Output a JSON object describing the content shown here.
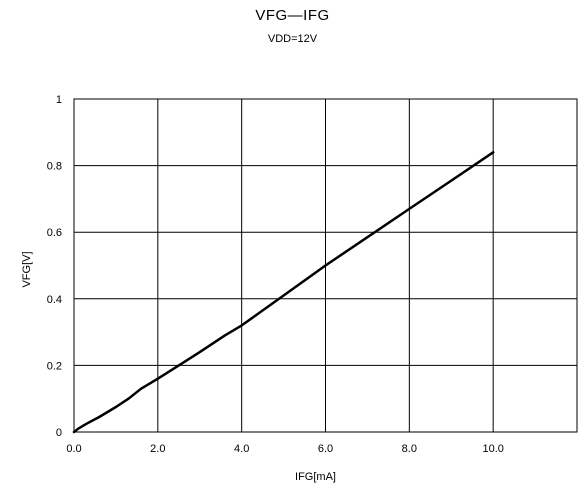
{
  "chart_data": {
    "type": "line",
    "title": "VFG—IFG",
    "subtitle": "VDD=12V",
    "xlabel": "IFG[mA]",
    "ylabel": "VFG[V]",
    "xlim": [
      0,
      12
    ],
    "ylim": [
      0,
      1
    ],
    "x_ticks": [
      0,
      2,
      4,
      6,
      8,
      10
    ],
    "x_tick_labels": [
      "0.0",
      "2.0",
      "4.0",
      "6.0",
      "8.0",
      "10.0"
    ],
    "y_ticks": [
      0,
      0.2,
      0.4,
      0.6,
      0.8,
      1
    ],
    "y_tick_labels": [
      "0",
      "0.2",
      "0.4",
      "0.6",
      "0.8",
      "1"
    ],
    "grid": true,
    "series": [
      {
        "color": "#000000",
        "x": [
          0,
          0.1,
          0.3,
          0.6,
          1.0,
          1.3,
          1.6,
          2.0,
          2.5,
          3.0,
          3.6,
          4.0,
          5.0,
          6.0,
          7.0,
          8.0,
          9.0,
          10.0
        ],
        "y": [
          0,
          0.01,
          0.025,
          0.045,
          0.075,
          0.1,
          0.13,
          0.16,
          0.2,
          0.24,
          0.29,
          0.32,
          0.41,
          0.5,
          0.585,
          0.67,
          0.755,
          0.84
        ]
      }
    ]
  }
}
